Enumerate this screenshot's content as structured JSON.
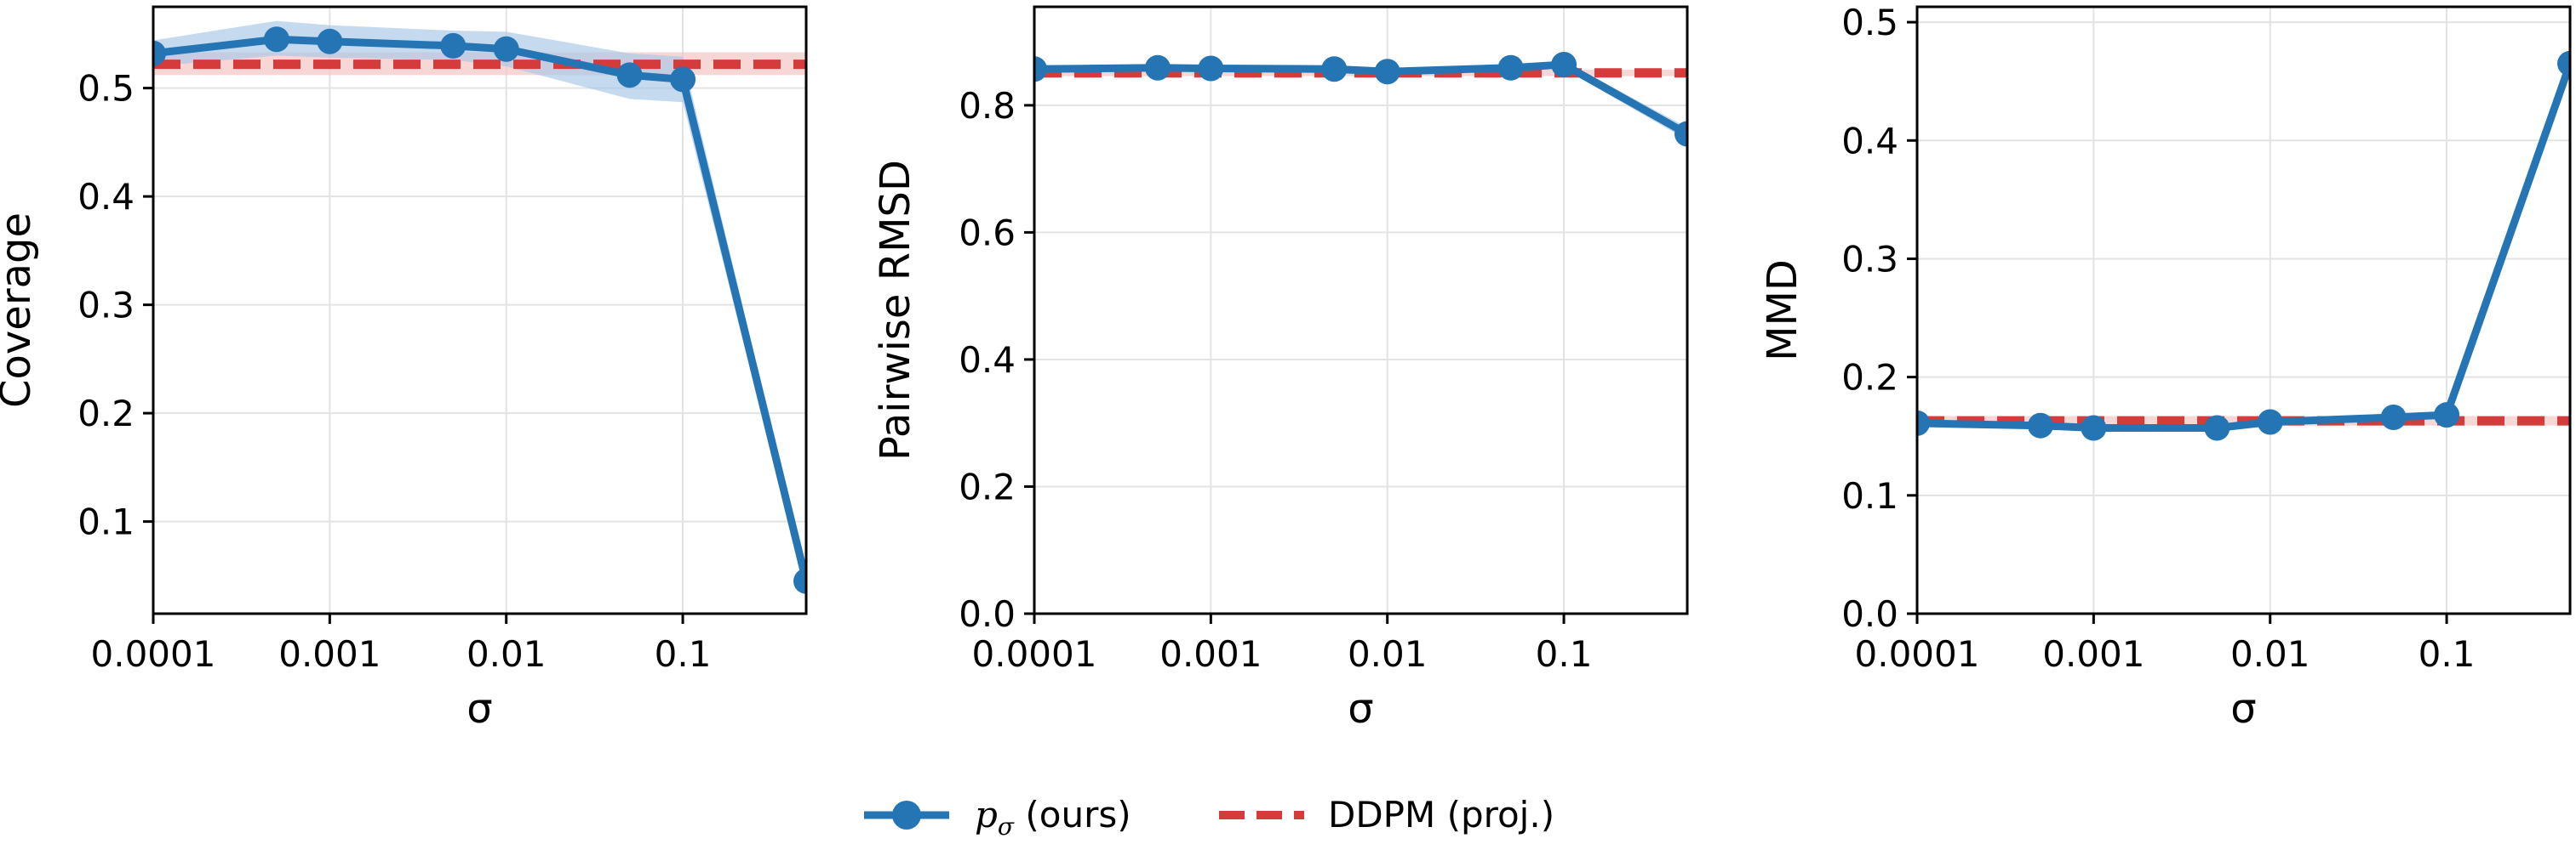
{
  "colors": {
    "ours": "#2575b4",
    "ours_band": "#a7c6e6",
    "baseline": "#d63b3b",
    "baseline_band": "#f3c5c5",
    "grid": "#e3e3e3",
    "frame": "#000000"
  },
  "legend": {
    "placement": "bottom-center",
    "ours_label_symbol": "p",
    "ours_label_subscript": "σ",
    "ours_label_suffix": " (ours)",
    "baseline_label": "DDPM (proj.)"
  },
  "chart_data": [
    {
      "type": "line",
      "xlabel": "σ",
      "ylabel": "Coverage",
      "x_scale": "log",
      "xlim": [
        0.0001,
        0.5
      ],
      "ylim": [
        0.015,
        0.575
      ],
      "grid": true,
      "x_ticks": [
        0.0001,
        0.001,
        0.01,
        0.1
      ],
      "x_tick_labels": [
        "0.0001",
        "0.001",
        "0.01",
        "0.1"
      ],
      "y_ticks": [
        0.1,
        0.2,
        0.3,
        0.4,
        0.5
      ],
      "y_tick_labels": [
        "0.1",
        "0.2",
        "0.3",
        "0.4",
        "0.5"
      ],
      "series": [
        {
          "name": "p_σ (ours)",
          "style": "solid-marker",
          "x": [
            0.0001,
            0.0005,
            0.001,
            0.005,
            0.01,
            0.05,
            0.1,
            0.5
          ],
          "y": [
            0.532,
            0.545,
            0.543,
            0.539,
            0.536,
            0.512,
            0.508,
            0.045
          ],
          "band_lower": [
            0.52,
            0.53,
            0.528,
            0.526,
            0.52,
            0.49,
            0.487,
            0.035
          ],
          "band_upper": [
            0.544,
            0.562,
            0.558,
            0.553,
            0.552,
            0.532,
            0.529,
            0.055
          ]
        },
        {
          "name": "DDPM (proj.)",
          "style": "dashed",
          "constant": 0.522,
          "band": [
            0.512,
            0.533
          ]
        }
      ]
    },
    {
      "type": "line",
      "xlabel": "σ",
      "ylabel": "Pairwise RMSD",
      "x_scale": "log",
      "xlim": [
        0.0001,
        0.5
      ],
      "ylim": [
        0.0,
        0.955
      ],
      "grid": true,
      "x_ticks": [
        0.0001,
        0.001,
        0.01,
        0.1
      ],
      "x_tick_labels": [
        "0.0001",
        "0.001",
        "0.01",
        "0.1"
      ],
      "y_ticks": [
        0.0,
        0.2,
        0.4,
        0.6,
        0.8
      ],
      "y_tick_labels": [
        "0.0",
        "0.2",
        "0.4",
        "0.6",
        "0.8"
      ],
      "series": [
        {
          "name": "p_σ (ours)",
          "style": "solid-marker",
          "x": [
            0.0001,
            0.0005,
            0.001,
            0.005,
            0.01,
            0.05,
            0.1,
            0.5
          ],
          "y": [
            0.857,
            0.859,
            0.858,
            0.857,
            0.853,
            0.859,
            0.864,
            0.755
          ],
          "band_lower": [
            0.852,
            0.854,
            0.853,
            0.852,
            0.848,
            0.854,
            0.858,
            0.745
          ],
          "band_upper": [
            0.862,
            0.864,
            0.863,
            0.862,
            0.858,
            0.864,
            0.87,
            0.765
          ]
        },
        {
          "name": "DDPM (proj.)",
          "style": "dashed",
          "constant": 0.851,
          "band": [
            0.846,
            0.856
          ]
        }
      ]
    },
    {
      "type": "line",
      "xlabel": "σ",
      "ylabel": "MMD",
      "x_scale": "log",
      "xlim": [
        0.0001,
        0.5
      ],
      "ylim": [
        0.0,
        0.513
      ],
      "grid": true,
      "x_ticks": [
        0.0001,
        0.001,
        0.01,
        0.1
      ],
      "x_tick_labels": [
        "0.0001",
        "0.001",
        "0.01",
        "0.1"
      ],
      "y_ticks": [
        0.0,
        0.1,
        0.2,
        0.3,
        0.4,
        0.5
      ],
      "y_tick_labels": [
        "0.0",
        "0.1",
        "0.2",
        "0.3",
        "0.4",
        "0.5"
      ],
      "series": [
        {
          "name": "p_σ (ours)",
          "style": "solid-marker",
          "x": [
            0.0001,
            0.0005,
            0.001,
            0.005,
            0.01,
            0.05,
            0.1,
            0.5
          ],
          "y": [
            0.161,
            0.159,
            0.157,
            0.157,
            0.162,
            0.166,
            0.168,
            0.465
          ],
          "band_lower": [
            0.158,
            0.156,
            0.154,
            0.154,
            0.159,
            0.163,
            0.165,
            0.46
          ],
          "band_upper": [
            0.164,
            0.162,
            0.16,
            0.16,
            0.165,
            0.169,
            0.171,
            0.47
          ]
        },
        {
          "name": "DDPM (proj.)",
          "style": "dashed",
          "constant": 0.163,
          "band": [
            0.159,
            0.167
          ]
        }
      ]
    }
  ]
}
